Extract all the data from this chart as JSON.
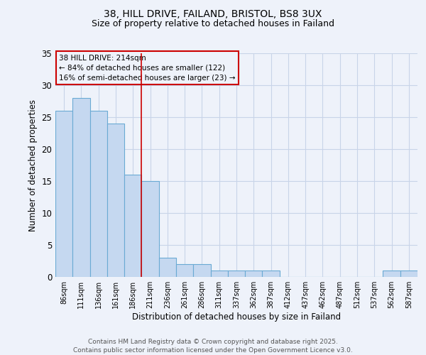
{
  "title1": "38, HILL DRIVE, FAILAND, BRISTOL, BS8 3UX",
  "title2": "Size of property relative to detached houses in Failand",
  "xlabel": "Distribution of detached houses by size in Failand",
  "ylabel": "Number of detached properties",
  "categories": [
    "86sqm",
    "111sqm",
    "136sqm",
    "161sqm",
    "186sqm",
    "211sqm",
    "236sqm",
    "261sqm",
    "286sqm",
    "311sqm",
    "337sqm",
    "362sqm",
    "387sqm",
    "412sqm",
    "437sqm",
    "462sqm",
    "487sqm",
    "512sqm",
    "537sqm",
    "562sqm",
    "587sqm"
  ],
  "values": [
    26,
    28,
    26,
    24,
    16,
    15,
    3,
    2,
    2,
    1,
    1,
    1,
    1,
    0,
    0,
    0,
    0,
    0,
    0,
    1,
    1
  ],
  "bar_color": "#c5d8f0",
  "bar_edge_color": "#6aaad4",
  "ylim": [
    0,
    35
  ],
  "yticks": [
    0,
    5,
    10,
    15,
    20,
    25,
    30,
    35
  ],
  "annotation_title": "38 HILL DRIVE: 214sqm",
  "annotation_line1": "← 84% of detached houses are smaller (122)",
  "annotation_line2": "16% of semi-detached houses are larger (23) →",
  "footer1": "Contains HM Land Registry data © Crown copyright and database right 2025.",
  "footer2": "Contains public sector information licensed under the Open Government Licence v3.0.",
  "background_color": "#eef2fa",
  "grid_color": "#c8d4e8",
  "red_line_color": "#cc0000",
  "red_line_x": 4.55
}
